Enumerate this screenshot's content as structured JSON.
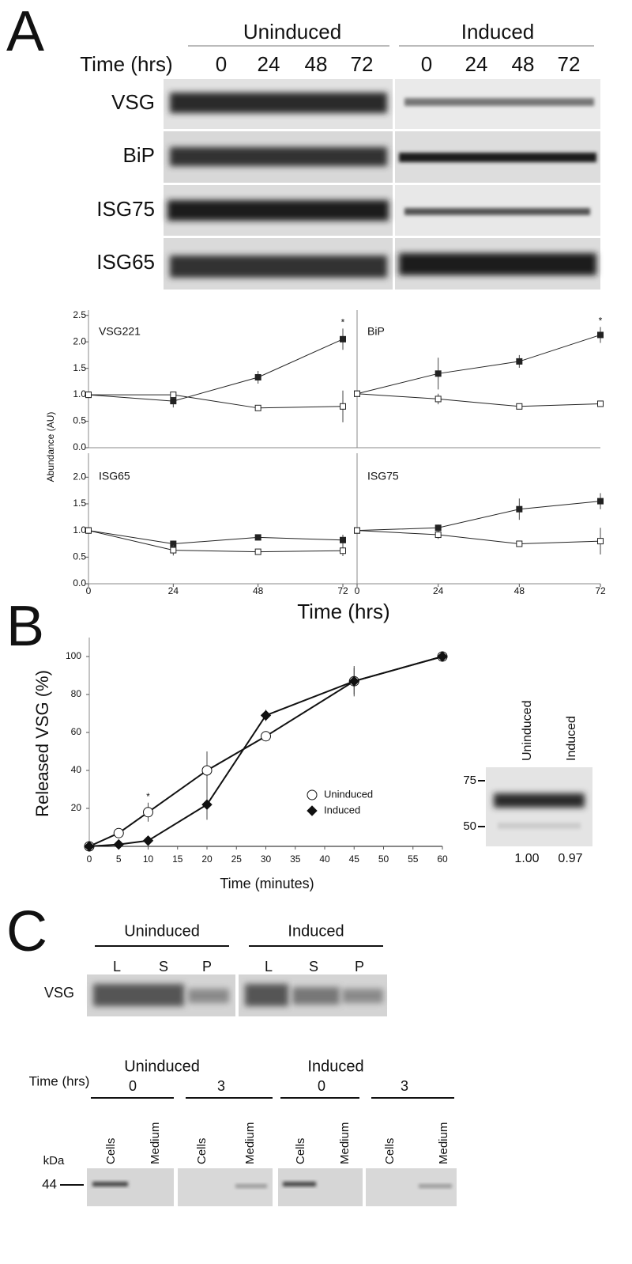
{
  "panel_a": {
    "label": "A",
    "groups": [
      "Uninduced",
      "Induced"
    ],
    "time_label": "Time (hrs)",
    "times": [
      "0",
      "24",
      "48",
      "72",
      "0",
      "24",
      "48",
      "72"
    ],
    "rows": [
      "VSG",
      "BiP",
      "ISG75",
      "ISG65"
    ],
    "y_label": "Abundance (AU)",
    "x_label": "Time (hrs)"
  },
  "chart_data": [
    {
      "type": "line",
      "title": "VSG221",
      "x": [
        0,
        24,
        48,
        72
      ],
      "xlim": [
        0,
        72
      ],
      "ylim": [
        0,
        2.6
      ],
      "yticks": [
        {
          "value": 0,
          "label": "0.0"
        },
        {
          "value": 0.5,
          "label": "0.5"
        },
        {
          "value": 1,
          "label": "1.0"
        },
        {
          "value": 1.5,
          "label": "1.5"
        },
        {
          "value": 2,
          "label": "2.0"
        },
        {
          "value": 2.5,
          "label": "2.5"
        }
      ],
      "series": [
        {
          "color": "#222222",
          "marker": "filled-square",
          "values": [
            1.0,
            0.88,
            1.33,
            2.05
          ],
          "errors": [
            0,
            0.12,
            0.12,
            0.2
          ],
          "point_labels": [
            null,
            null,
            null,
            "*"
          ]
        },
        {
          "color": "#222222",
          "marker": "open-square",
          "values": [
            1.0,
            1.0,
            0.75,
            0.78
          ],
          "errors": [
            0,
            0.05,
            0.03,
            0.3
          ]
        }
      ]
    },
    {
      "type": "line",
      "title": "BiP",
      "x": [
        0,
        24,
        48,
        72
      ],
      "xlim": [
        0,
        72
      ],
      "ylim": [
        0,
        2.6
      ],
      "series": [
        {
          "color": "#222222",
          "marker": "filled-square",
          "values": [
            1.02,
            1.4,
            1.63,
            2.13
          ],
          "errors": [
            0,
            0.3,
            0.12,
            0.15
          ],
          "point_labels": [
            null,
            null,
            null,
            "*"
          ]
        },
        {
          "color": "#222222",
          "marker": "open-square",
          "values": [
            1.02,
            0.92,
            0.78,
            0.83
          ],
          "errors": [
            0,
            0.1,
            0.04,
            0.03
          ]
        }
      ]
    },
    {
      "type": "line",
      "title": "ISG65",
      "x": [
        0,
        24,
        48,
        72
      ],
      "xlim": [
        0,
        72
      ],
      "ylim": [
        0,
        2.45
      ],
      "xticks": [
        0,
        24,
        48,
        72
      ],
      "yticks": [
        {
          "value": 0,
          "label": "0.0"
        },
        {
          "value": 0.5,
          "label": "0.5"
        },
        {
          "value": 1,
          "label": "1.0"
        },
        {
          "value": 1.5,
          "label": "1.5"
        },
        {
          "value": 2,
          "label": "2.0"
        }
      ],
      "series": [
        {
          "color": "#222222",
          "marker": "filled-square",
          "values": [
            1.0,
            0.75,
            0.87,
            0.82
          ],
          "errors": [
            0,
            0.06,
            0.03,
            0.1
          ]
        },
        {
          "color": "#222222",
          "marker": "open-square",
          "values": [
            1.0,
            0.63,
            0.6,
            0.62
          ],
          "errors": [
            0,
            0.1,
            0.03,
            0.1
          ]
        }
      ]
    },
    {
      "type": "line",
      "title": "ISG75",
      "x": [
        0,
        24,
        48,
        72
      ],
      "xlim": [
        0,
        72
      ],
      "ylim": [
        0,
        2.45
      ],
      "xticks": [
        0,
        24,
        48,
        72
      ],
      "series": [
        {
          "color": "#222222",
          "marker": "filled-square",
          "values": [
            1.0,
            1.05,
            1.4,
            1.55
          ],
          "errors": [
            0,
            0.06,
            0.2,
            0.15
          ]
        },
        {
          "color": "#222222",
          "marker": "open-square",
          "values": [
            1.0,
            0.92,
            0.75,
            0.8
          ],
          "errors": [
            0,
            0.08,
            0.03,
            0.25
          ]
        }
      ]
    },
    {
      "type": "line",
      "y_label": "Released VSG (%)",
      "x_label": "Time (minutes)",
      "x": [
        0,
        5,
        10,
        20,
        30,
        45,
        60
      ],
      "xlim": [
        0,
        60
      ],
      "ylim": [
        0,
        110
      ],
      "xticks": [
        0,
        5,
        10,
        15,
        20,
        25,
        30,
        35,
        40,
        45,
        50,
        55,
        60
      ],
      "yticks": [
        20,
        40,
        60,
        80,
        100
      ],
      "series": [
        {
          "name": "Uninduced",
          "color": "#111111",
          "marker": "open-circle",
          "values": [
            0,
            7,
            18,
            40,
            58,
            87,
            100
          ],
          "errors": [
            0,
            0,
            5,
            10,
            0,
            8,
            0
          ],
          "point_labels": [
            null,
            null,
            "*",
            null,
            null,
            null,
            null
          ]
        },
        {
          "name": "Induced",
          "color": "#111111",
          "marker": "diamond",
          "values": [
            0,
            1,
            3,
            22,
            69,
            87,
            100
          ],
          "errors": [
            0,
            0,
            0,
            8,
            3,
            7,
            0
          ]
        }
      ]
    }
  ],
  "panel_b": {
    "label": "B",
    "blot_lanes": [
      "Uninduced",
      "Induced"
    ],
    "markers": [
      "75",
      "50"
    ],
    "ratios": [
      "1.00",
      "0.97"
    ]
  },
  "panel_c": {
    "label": "C",
    "groups": [
      "Uninduced",
      "Induced"
    ],
    "lanes": [
      "L",
      "S",
      "P",
      "L",
      "S",
      "P"
    ],
    "row": "VSG",
    "groups2": [
      "Uninduced",
      "Induced"
    ],
    "time_label": "Time (hrs)",
    "times": [
      "0",
      "3",
      "0",
      "3"
    ],
    "lanes2": [
      "Cells",
      "Medium",
      "Cells",
      "Medium",
      "Cells",
      "Medium",
      "Cells",
      "Medium"
    ],
    "unit": "kDa",
    "marker": "44"
  }
}
